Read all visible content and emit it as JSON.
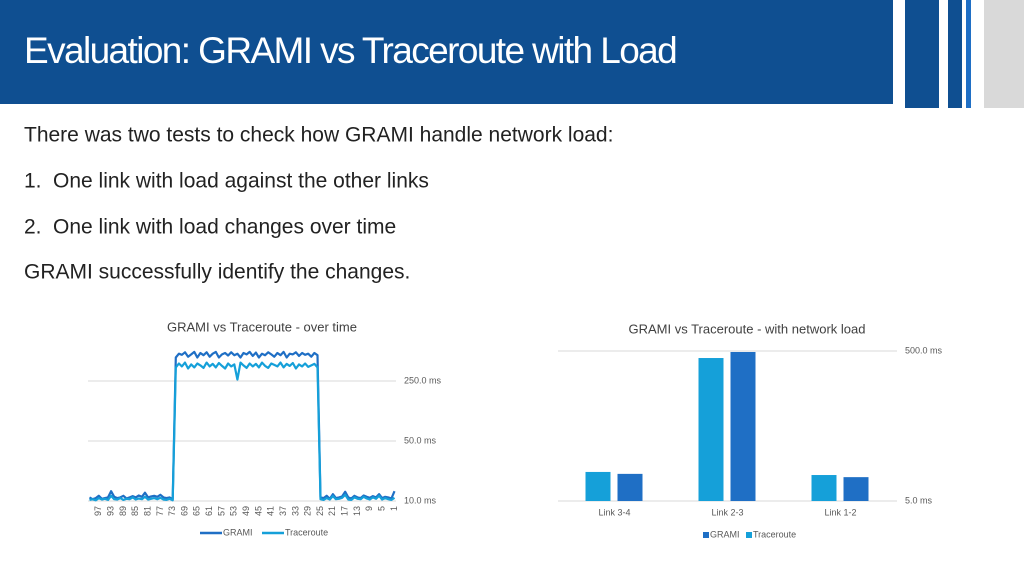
{
  "header": {
    "title": "Evaluation: GRAMI vs Traceroute with Load"
  },
  "body": {
    "lines": [
      "There was two tests to check how GRAMI handle network load:",
      "One link with load against the other links",
      "One link with load changes over time",
      "GRAMI successfully identify the changes."
    ],
    "numbers": [
      "1.",
      "2."
    ]
  },
  "chart_data": [
    {
      "type": "line",
      "title": "GRAMI vs Traceroute - over time",
      "categories": [
        null,
        null,
        null,
        "97",
        null,
        null,
        null,
        "93",
        null,
        null,
        null,
        "89",
        null,
        null,
        null,
        "85",
        null,
        null,
        null,
        "81",
        null,
        null,
        null,
        "77",
        null,
        null,
        null,
        "73",
        null,
        null,
        null,
        "69",
        null,
        null,
        null,
        "65",
        null,
        null,
        null,
        "61",
        null,
        null,
        null,
        "57",
        null,
        null,
        null,
        "53",
        null,
        null,
        null,
        "49",
        null,
        null,
        null,
        "45",
        null,
        null,
        null,
        "41",
        null,
        null,
        null,
        "37",
        null,
        null,
        null,
        "33",
        null,
        null,
        null,
        "29",
        null,
        null,
        null,
        "25",
        null,
        null,
        null,
        "21",
        null,
        null,
        null,
        "17",
        null,
        null,
        null,
        "13",
        null,
        null,
        null,
        "9",
        null,
        null,
        null,
        "5",
        null,
        null,
        null,
        "1"
      ],
      "series": [
        {
          "name": "GRAMI",
          "color": "#1f6fc5",
          "values": [
            11,
            10.5,
            10.8,
            11.5,
            10.6,
            10.8,
            11,
            13,
            11.2,
            10.8,
            11,
            11.5,
            10.7,
            11,
            11.4,
            11,
            11.6,
            11.2,
            12.5,
            11,
            11.3,
            11.5,
            11.2,
            11.8,
            11,
            10.8,
            11,
            10.5,
            470,
            520,
            505,
            540,
            480,
            510,
            545,
            470,
            530,
            500,
            540,
            480,
            520,
            545,
            470,
            510,
            530,
            495,
            540,
            500,
            520,
            470,
            530,
            510,
            545,
            490,
            535,
            470,
            520,
            500,
            540,
            510,
            480,
            530,
            500,
            545,
            470,
            520,
            510,
            540,
            490,
            530,
            505,
            520,
            480,
            530,
            500,
            11,
            10.8,
            11.5,
            10.6,
            12,
            10.8,
            11,
            11.3,
            12.8,
            11,
            10.7,
            11.5,
            11,
            10.8,
            11.6,
            11.2,
            10.9,
            11.4,
            11,
            12,
            10.8,
            11.2,
            11,
            10.7,
            13
          ]
        },
        {
          "name": "Traceroute",
          "color": "#15a0d9",
          "values": [
            10.3,
            10.5,
            10.2,
            10.8,
            10.4,
            10.6,
            10.3,
            11.5,
            10.5,
            10.4,
            10.8,
            10.3,
            10.6,
            10.5,
            11,
            10.4,
            10.7,
            10.5,
            11.2,
            10.4,
            10.6,
            10.8,
            10.5,
            10.9,
            10.4,
            10.3,
            10.6,
            10.2,
            360,
            400,
            370,
            410,
            350,
            390,
            360,
            400,
            380,
            355,
            410,
            370,
            395,
            360,
            405,
            375,
            350,
            400,
            370,
            390,
            260,
            410,
            380,
            355,
            400,
            370,
            395,
            360,
            410,
            375,
            355,
            400,
            385,
            370,
            410,
            360,
            395,
            375,
            405,
            350,
            390,
            370,
            400,
            365,
            380,
            395,
            360,
            10.5,
            10.3,
            10.8,
            10.4,
            11.4,
            10.5,
            10.6,
            10.9,
            11.8,
            10.4,
            10.3,
            11,
            10.6,
            10.5,
            11.2,
            10.7,
            10.4,
            11,
            10.6,
            11.5,
            10.4,
            10.8,
            10.5,
            10.3,
            10.9
          ]
        }
      ],
      "log_scale": true,
      "ylim": [
        10,
        559
      ],
      "yticks": [
        {
          "value": 10,
          "label": "10.0 ms"
        },
        {
          "value": 50,
          "label": "50.0 ms"
        },
        {
          "value": 250,
          "label": "250.0 ms"
        }
      ],
      "grid": true
    },
    {
      "type": "bar",
      "title": "GRAMI vs Traceroute - with network load",
      "categories": [
        "Link 3-4",
        "Link 2-3",
        "Link 1-2"
      ],
      "series": [
        {
          "name": "GRAMI",
          "color": "#1f6fc5",
          "values": [
            11.5,
            485,
            10.4
          ]
        },
        {
          "name": "Traceroute",
          "color": "#15a0d9",
          "values": [
            12.2,
            403,
            11.1
          ]
        }
      ],
      "log_scale": true,
      "ylim": [
        5,
        500
      ],
      "yticks": [
        {
          "value": 5,
          "label": "5.0 ms"
        },
        {
          "value": 500,
          "label": "500.0 ms"
        }
      ],
      "grid": true
    }
  ]
}
